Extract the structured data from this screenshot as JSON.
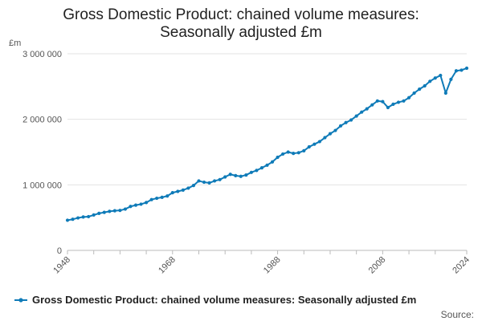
{
  "chart_data": {
    "type": "line",
    "title_line1": "Gross Domestic Product: chained volume measures:",
    "title_line2": "Seasonally adjusted £m",
    "unit": "£m",
    "ylim": [
      0,
      3000000
    ],
    "xlim": [
      1948,
      2024
    ],
    "y_ticks": [
      {
        "value": 0,
        "label": "0"
      },
      {
        "value": 1000000,
        "label": "1 000 000"
      },
      {
        "value": 2000000,
        "label": "2 000 000"
      },
      {
        "value": 3000000,
        "label": "3 000 000"
      }
    ],
    "x_ticks": [
      {
        "value": 1948,
        "label": "1948"
      },
      {
        "value": 1968,
        "label": "1968"
      },
      {
        "value": 1988,
        "label": "1988"
      },
      {
        "value": 2008,
        "label": "2008"
      },
      {
        "value": 2024,
        "label": "2024"
      }
    ],
    "x_minor_ticks": [
      1948,
      1953,
      1958,
      1963,
      1968,
      1973,
      1978,
      1983,
      1988,
      1993,
      1998,
      2003,
      2008,
      2013,
      2018,
      2024
    ],
    "series": [
      {
        "name": "Gross Domestic Product: chained volume measures: Seasonally adjusted £m",
        "color": "#0f7bb8",
        "x": [
          1948,
          1949,
          1950,
          1951,
          1952,
          1953,
          1954,
          1955,
          1956,
          1957,
          1958,
          1959,
          1960,
          1961,
          1962,
          1963,
          1964,
          1965,
          1966,
          1967,
          1968,
          1969,
          1970,
          1971,
          1972,
          1973,
          1974,
          1975,
          1976,
          1977,
          1978,
          1979,
          1980,
          1981,
          1982,
          1983,
          1984,
          1985,
          1986,
          1987,
          1988,
          1989,
          1990,
          1991,
          1992,
          1993,
          1994,
          1995,
          1996,
          1997,
          1998,
          1999,
          2000,
          2001,
          2002,
          2003,
          2004,
          2005,
          2006,
          2007,
          2008,
          2009,
          2010,
          2011,
          2012,
          2013,
          2014,
          2015,
          2016,
          2017,
          2018,
          2019,
          2020,
          2021,
          2022,
          2023,
          2024
        ],
        "values": [
          460000,
          475000,
          495000,
          510000,
          515000,
          540000,
          565000,
          580000,
          595000,
          605000,
          610000,
          630000,
          670000,
          690000,
          705000,
          730000,
          775000,
          795000,
          810000,
          830000,
          880000,
          900000,
          920000,
          950000,
          990000,
          1060000,
          1040000,
          1030000,
          1060000,
          1080000,
          1120000,
          1160000,
          1140000,
          1130000,
          1150000,
          1190000,
          1220000,
          1260000,
          1300000,
          1350000,
          1420000,
          1470000,
          1500000,
          1480000,
          1490000,
          1520000,
          1580000,
          1620000,
          1660000,
          1720000,
          1780000,
          1830000,
          1900000,
          1950000,
          1990000,
          2050000,
          2110000,
          2160000,
          2220000,
          2280000,
          2270000,
          2180000,
          2230000,
          2260000,
          2280000,
          2330000,
          2400000,
          2460000,
          2510000,
          2580000,
          2630000,
          2670000,
          2400000,
          2610000,
          2740000,
          2750000,
          2780000
        ]
      }
    ],
    "source": "Source:"
  }
}
